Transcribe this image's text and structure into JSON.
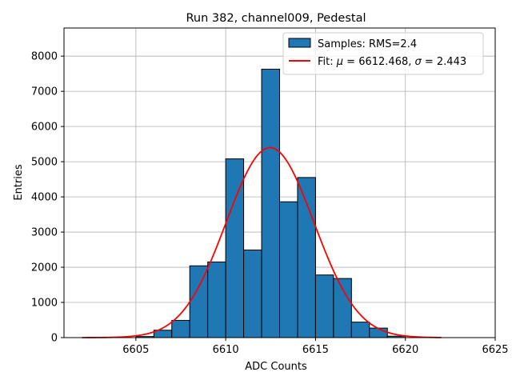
{
  "chart_data": {
    "type": "histogram",
    "title": "Run 382, channel009, Pedestal",
    "xlabel": "ADC Counts",
    "ylabel": "Entries",
    "xlim": [
      6601,
      6625
    ],
    "ylim": [
      0,
      8800
    ],
    "xticks": [
      6605,
      6610,
      6615,
      6620,
      6625
    ],
    "yticks": [
      0,
      1000,
      2000,
      3000,
      4000,
      5000,
      6000,
      7000,
      8000
    ],
    "grid": true,
    "bins": [
      {
        "left": 6605,
        "right": 6606,
        "count": 30
      },
      {
        "left": 6606,
        "right": 6607,
        "count": 210
      },
      {
        "left": 6607,
        "right": 6608,
        "count": 490
      },
      {
        "left": 6608,
        "right": 6609,
        "count": 2040
      },
      {
        "left": 6609,
        "right": 6610,
        "count": 2150
      },
      {
        "left": 6610,
        "right": 6611,
        "count": 5080
      },
      {
        "left": 6611,
        "right": 6612,
        "count": 2490
      },
      {
        "left": 6612,
        "right": 6613,
        "count": 7630
      },
      {
        "left": 6613,
        "right": 6614,
        "count": 3860
      },
      {
        "left": 6614,
        "right": 6615,
        "count": 4550
      },
      {
        "left": 6615,
        "right": 6616,
        "count": 1780
      },
      {
        "left": 6616,
        "right": 6617,
        "count": 1680
      },
      {
        "left": 6617,
        "right": 6618,
        "count": 440
      },
      {
        "left": 6618,
        "right": 6619,
        "count": 270
      },
      {
        "left": 6619,
        "right": 6620,
        "count": 40
      }
    ],
    "fit": {
      "mu": 6612.468,
      "sigma": 2.443,
      "amplitude": 5400,
      "x_range": [
        6602,
        6622
      ]
    },
    "legend": {
      "placement": "top-right",
      "entries": [
        {
          "label": "Samples: RMS=2.4",
          "kind": "patch"
        },
        {
          "prefix": "Fit: ",
          "mu_symbol": "μ",
          "mu_text": " = 6612.468, ",
          "sigma_symbol": "σ",
          "sigma_text": " = 2.443",
          "kind": "line"
        }
      ]
    },
    "colors": {
      "bar_fill": "#1f77b4",
      "bar_edge": "#000000",
      "fit_line": "#ff0000",
      "grid": "#b0b0b0"
    }
  }
}
